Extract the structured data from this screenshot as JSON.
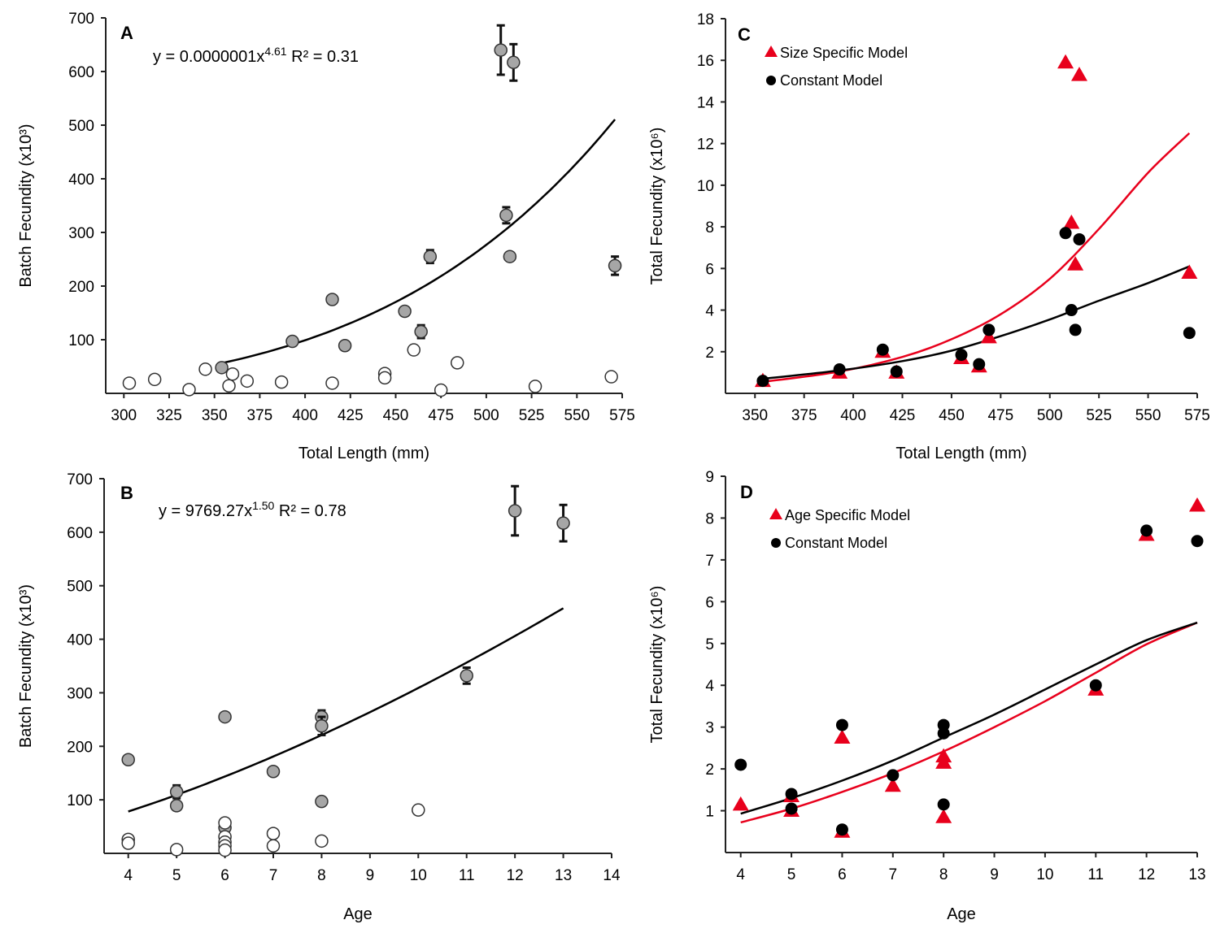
{
  "chart_data": [
    {
      "id": "A",
      "type": "scatter",
      "panel_label": "A",
      "annotation": {
        "prefix": "y = 0.0000001x",
        "exponent": "4.61",
        "suffix": " R² = 0.31"
      },
      "xlabel": "Total Length (mm)",
      "ylabel": "Batch Fecundity (x10³)",
      "xlim": [
        290,
        575
      ],
      "ylim": [
        0,
        700
      ],
      "xticks": [
        300,
        325,
        350,
        375,
        400,
        425,
        450,
        475,
        500,
        525,
        550,
        575
      ],
      "yticks": [
        100,
        200,
        300,
        400,
        500,
        600,
        700
      ],
      "fit": {
        "type": "power",
        "a": 1e-07,
        "b": 4.61,
        "x_range": [
          354,
          571
        ],
        "color": "#000000"
      },
      "series": [
        {
          "name": "filled",
          "marker": "circle",
          "fill": "#a6a6a6",
          "stroke": "#333333",
          "points": [
            {
              "x": 354,
              "y": 48
            },
            {
              "x": 393,
              "y": 97
            },
            {
              "x": 415,
              "y": 175
            },
            {
              "x": 422,
              "y": 89
            },
            {
              "x": 455,
              "y": 153
            },
            {
              "x": 464,
              "y": 115,
              "err": 12
            },
            {
              "x": 469,
              "y": 255,
              "err": 12
            },
            {
              "x": 508,
              "y": 640,
              "err": 46
            },
            {
              "x": 511,
              "y": 332,
              "err": 15
            },
            {
              "x": 513,
              "y": 255
            },
            {
              "x": 515,
              "y": 617,
              "err": 34
            },
            {
              "x": 571,
              "y": 238,
              "err": 17
            }
          ]
        },
        {
          "name": "open",
          "marker": "circle",
          "fill": "#ffffff",
          "stroke": "#333333",
          "points": [
            {
              "x": 303,
              "y": 19
            },
            {
              "x": 317,
              "y": 26
            },
            {
              "x": 336,
              "y": 7
            },
            {
              "x": 345,
              "y": 45
            },
            {
              "x": 358,
              "y": 14
            },
            {
              "x": 360,
              "y": 36
            },
            {
              "x": 368,
              "y": 23
            },
            {
              "x": 387,
              "y": 21
            },
            {
              "x": 415,
              "y": 19
            },
            {
              "x": 444,
              "y": 37
            },
            {
              "x": 444,
              "y": 29
            },
            {
              "x": 460,
              "y": 81
            },
            {
              "x": 475,
              "y": 6
            },
            {
              "x": 484,
              "y": 57
            },
            {
              "x": 527,
              "y": 13
            },
            {
              "x": 569,
              "y": 31
            }
          ]
        }
      ]
    },
    {
      "id": "B",
      "type": "scatter",
      "panel_label": "B",
      "annotation": {
        "prefix": "y = 9769.27x",
        "exponent": "1.50",
        "suffix": " R² = 0.78"
      },
      "xlabel": "Age",
      "ylabel": "Batch Fecundity (x10³)",
      "xlim": [
        3.5,
        14
      ],
      "ylim": [
        0,
        700
      ],
      "xticks": [
        4,
        5,
        6,
        7,
        8,
        9,
        10,
        11,
        12,
        13,
        14
      ],
      "yticks": [
        100,
        200,
        300,
        400,
        500,
        600,
        700
      ],
      "fit": {
        "type": "power",
        "a": 9769.27,
        "b": 1.5,
        "x_range": [
          4,
          13
        ],
        "color": "#000000"
      },
      "series": [
        {
          "name": "filled",
          "marker": "circle",
          "fill": "#a6a6a6",
          "stroke": "#333333",
          "points": [
            {
              "x": 4,
              "y": 175
            },
            {
              "x": 5,
              "y": 115,
              "err": 12
            },
            {
              "x": 5,
              "y": 89
            },
            {
              "x": 6,
              "y": 255
            },
            {
              "x": 6,
              "y": 48
            },
            {
              "x": 7,
              "y": 153
            },
            {
              "x": 8,
              "y": 255,
              "err": 12
            },
            {
              "x": 8,
              "y": 238,
              "err": 17
            },
            {
              "x": 8,
              "y": 97
            },
            {
              "x": 11,
              "y": 332,
              "err": 15
            },
            {
              "x": 12,
              "y": 640,
              "err": 46
            },
            {
              "x": 13,
              "y": 617,
              "err": 34
            }
          ]
        },
        {
          "name": "open",
          "marker": "circle",
          "fill": "#ffffff",
          "stroke": "#333333",
          "points": [
            {
              "x": 4,
              "y": 26
            },
            {
              "x": 4,
              "y": 19
            },
            {
              "x": 5,
              "y": 7
            },
            {
              "x": 6,
              "y": 57
            },
            {
              "x": 6,
              "y": 31
            },
            {
              "x": 6,
              "y": 21
            },
            {
              "x": 6,
              "y": 14
            },
            {
              "x": 6,
              "y": 6
            },
            {
              "x": 7,
              "y": 37
            },
            {
              "x": 7,
              "y": 14
            },
            {
              "x": 8,
              "y": 23
            },
            {
              "x": 10,
              "y": 81
            }
          ]
        }
      ]
    },
    {
      "id": "C",
      "type": "scatter",
      "panel_label": "C",
      "xlabel": "Total Length (mm)",
      "ylabel": "Total Fecundity (x10⁶)",
      "xlim": [
        335,
        575
      ],
      "ylim": [
        0,
        18
      ],
      "xticks": [
        350,
        375,
        400,
        425,
        450,
        475,
        500,
        525,
        550,
        575
      ],
      "yticks": [
        2,
        4,
        6,
        8,
        10,
        12,
        14,
        16,
        18
      ],
      "legend": {
        "position": "top-left"
      },
      "fits": [
        {
          "name": "Size Specific Model fit",
          "type": "power",
          "points_ref": "red",
          "color": "#e8001c",
          "curve": [
            [
              354,
              0.55
            ],
            [
              393,
              1.05
            ],
            [
              425,
              1.75
            ],
            [
              450,
              2.6
            ],
            [
              475,
              3.8
            ],
            [
              500,
              5.5
            ],
            [
              525,
              7.9
            ],
            [
              550,
              10.6
            ],
            [
              571,
              12.5
            ]
          ]
        },
        {
          "name": "Constant Model fit",
          "type": "power",
          "color": "#000000",
          "curve": [
            [
              354,
              0.7
            ],
            [
              393,
              1.1
            ],
            [
              425,
              1.55
            ],
            [
              450,
              2.05
            ],
            [
              475,
              2.75
            ],
            [
              500,
              3.55
            ],
            [
              525,
              4.45
            ],
            [
              550,
              5.3
            ],
            [
              571,
              6.1
            ]
          ]
        }
      ],
      "series": [
        {
          "name": "Size Specific Model",
          "marker": "triangle",
          "color": "#e8001c",
          "points": [
            {
              "x": 354,
              "y": 0.6
            },
            {
              "x": 393,
              "y": 1.0
            },
            {
              "x": 415,
              "y": 2.0
            },
            {
              "x": 422,
              "y": 1.0
            },
            {
              "x": 455,
              "y": 1.7
            },
            {
              "x": 464,
              "y": 1.3
            },
            {
              "x": 469,
              "y": 2.7
            },
            {
              "x": 508,
              "y": 15.9
            },
            {
              "x": 511,
              "y": 8.2
            },
            {
              "x": 513,
              "y": 6.2
            },
            {
              "x": 515,
              "y": 15.3
            },
            {
              "x": 571,
              "y": 5.8
            }
          ]
        },
        {
          "name": "Constant Model",
          "marker": "circle",
          "color": "#000000",
          "points": [
            {
              "x": 354,
              "y": 0.6
            },
            {
              "x": 393,
              "y": 1.15
            },
            {
              "x": 415,
              "y": 2.1
            },
            {
              "x": 422,
              "y": 1.05
            },
            {
              "x": 455,
              "y": 1.85
            },
            {
              "x": 464,
              "y": 1.4
            },
            {
              "x": 469,
              "y": 3.05
            },
            {
              "x": 508,
              "y": 7.7
            },
            {
              "x": 511,
              "y": 4.0
            },
            {
              "x": 513,
              "y": 3.05
            },
            {
              "x": 515,
              "y": 7.4
            },
            {
              "x": 571,
              "y": 2.9
            }
          ]
        }
      ]
    },
    {
      "id": "D",
      "type": "scatter",
      "panel_label": "D",
      "xlabel": "Age",
      "ylabel": "Total Fecundity (x10⁶)",
      "xlim": [
        3.7,
        13
      ],
      "ylim": [
        0,
        9
      ],
      "xticks": [
        4,
        5,
        6,
        7,
        8,
        9,
        10,
        11,
        12,
        13
      ],
      "yticks": [
        1,
        2,
        3,
        4,
        5,
        6,
        7,
        8,
        9
      ],
      "legend": {
        "position": "top-left"
      },
      "fits": [
        {
          "name": "Age Specific Model fit",
          "type": "power",
          "color": "#e8001c",
          "curve": [
            [
              4,
              0.72
            ],
            [
              5,
              1.05
            ],
            [
              6,
              1.45
            ],
            [
              7,
              1.9
            ],
            [
              8,
              2.42
            ],
            [
              9,
              3.0
            ],
            [
              10,
              3.62
            ],
            [
              11,
              4.3
            ],
            [
              12,
              4.98
            ],
            [
              13,
              5.5
            ]
          ]
        },
        {
          "name": "Constant Model fit",
          "type": "power",
          "color": "#000000",
          "curve": [
            [
              4,
              0.93
            ],
            [
              5,
              1.3
            ],
            [
              6,
              1.72
            ],
            [
              7,
              2.2
            ],
            [
              8,
              2.75
            ],
            [
              9,
              3.3
            ],
            [
              10,
              3.9
            ],
            [
              11,
              4.5
            ],
            [
              12,
              5.08
            ],
            [
              13,
              5.5
            ]
          ]
        }
      ],
      "series": [
        {
          "name": "Age Specific Model",
          "marker": "triangle",
          "color": "#e8001c",
          "points": [
            {
              "x": 4,
              "y": 1.15
            },
            {
              "x": 5,
              "y": 1.35
            },
            {
              "x": 5,
              "y": 1.0
            },
            {
              "x": 6,
              "y": 2.75
            },
            {
              "x": 6,
              "y": 0.5
            },
            {
              "x": 7,
              "y": 1.6
            },
            {
              "x": 8,
              "y": 2.3
            },
            {
              "x": 8,
              "y": 2.15
            },
            {
              "x": 8,
              "y": 0.85
            },
            {
              "x": 11,
              "y": 3.9
            },
            {
              "x": 12,
              "y": 7.6
            },
            {
              "x": 13,
              "y": 8.3
            }
          ]
        },
        {
          "name": "Constant Model",
          "marker": "circle",
          "color": "#000000",
          "points": [
            {
              "x": 4,
              "y": 2.1
            },
            {
              "x": 5,
              "y": 1.4
            },
            {
              "x": 5,
              "y": 1.05
            },
            {
              "x": 6,
              "y": 3.05
            },
            {
              "x": 6,
              "y": 0.55
            },
            {
              "x": 7,
              "y": 1.85
            },
            {
              "x": 8,
              "y": 3.05
            },
            {
              "x": 8,
              "y": 2.85
            },
            {
              "x": 8,
              "y": 1.15
            },
            {
              "x": 11,
              "y": 4.0
            },
            {
              "x": 12,
              "y": 7.7
            },
            {
              "x": 13,
              "y": 7.45
            }
          ]
        }
      ]
    }
  ]
}
